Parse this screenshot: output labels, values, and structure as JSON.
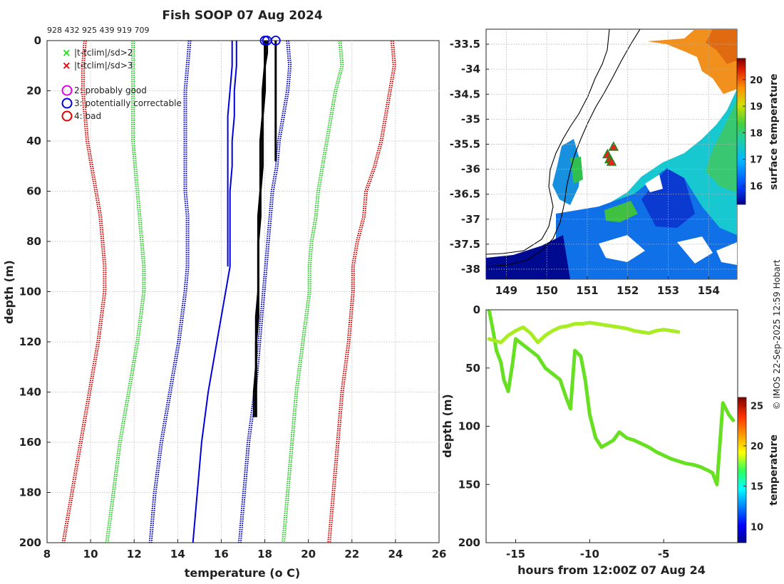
{
  "figure": {
    "title": "Fish SOOP 07 Aug 2024",
    "ids_text": "928 432 925 439 919 709",
    "credit": "© IMOS 22-Sep-2025 12:59 Hobart"
  },
  "legend": {
    "items": [
      {
        "symbol": "x",
        "color": "#22dd22",
        "label": "|t-tclim|/sd>2"
      },
      {
        "symbol": "x",
        "color": "#dd0000",
        "label": "|t-tclim|/sd>3"
      },
      {
        "symbol": "o",
        "color": "#e000e0",
        "label": "2: probably good"
      },
      {
        "symbol": "o",
        "color": "#0000dd",
        "label": "3: potentially correctable"
      },
      {
        "symbol": "o",
        "color": "#dd0000",
        "label": "4: bad"
      }
    ]
  },
  "chart_data": [
    {
      "id": "profile",
      "type": "line",
      "xlabel": "temperature",
      "xlabel_unit": "(o C)",
      "ylabel": "depth (m)",
      "xlim": [
        8,
        26
      ],
      "ylim": [
        0,
        200
      ],
      "y_reversed": true,
      "xticks": [
        8,
        10,
        12,
        14,
        16,
        18,
        20,
        22,
        24,
        26
      ],
      "yticks": [
        0,
        20,
        40,
        60,
        80,
        100,
        120,
        140,
        160,
        180,
        200
      ],
      "grid": true,
      "series": [
        {
          "name": "clim +3sd",
          "color": "#dd0000",
          "style": "dotted",
          "band": 2,
          "depth": [
            0,
            10,
            20,
            30,
            40,
            50,
            60,
            70,
            80,
            90,
            100,
            120,
            140,
            160,
            180,
            200
          ],
          "temp": [
            23.8,
            23.9,
            23.7,
            23.5,
            23.3,
            23.0,
            22.6,
            22.5,
            22.2,
            22.0,
            22.0,
            21.8,
            21.5,
            21.3,
            21.1,
            20.9
          ]
        },
        {
          "name": "clim +2sd",
          "color": "#22cc22",
          "style": "dotted",
          "band": 2,
          "depth": [
            0,
            10,
            20,
            30,
            40,
            50,
            60,
            70,
            80,
            90,
            100,
            120,
            140,
            160,
            180,
            200
          ],
          "temp": [
            21.4,
            21.5,
            21.2,
            21.0,
            20.8,
            20.6,
            20.4,
            20.3,
            20.1,
            20.0,
            20.0,
            19.7,
            19.4,
            19.2,
            19.0,
            18.8
          ]
        },
        {
          "name": "clim +1sd",
          "color": "#0000cc",
          "style": "dotted",
          "band": 2,
          "depth": [
            0,
            10,
            20,
            30,
            40,
            50,
            60,
            70,
            80,
            90,
            100,
            120,
            140,
            160,
            180,
            200
          ],
          "temp": [
            19.0,
            19.1,
            19.0,
            18.8,
            18.6,
            18.5,
            18.3,
            18.2,
            18.1,
            18.0,
            17.9,
            17.7,
            17.5,
            17.2,
            17.0,
            16.8
          ]
        },
        {
          "name": "clim -1sd",
          "color": "#0000cc",
          "style": "dotted",
          "band": 2,
          "depth": [
            0,
            10,
            20,
            30,
            40,
            50,
            60,
            70,
            80,
            90,
            100,
            120,
            140,
            160,
            180,
            200
          ],
          "temp": [
            14.5,
            14.4,
            14.3,
            14.3,
            14.3,
            14.3,
            14.3,
            14.4,
            14.4,
            14.4,
            14.3,
            14.0,
            13.6,
            13.2,
            12.9,
            12.7
          ]
        },
        {
          "name": "clim -2sd",
          "color": "#22cc22",
          "style": "dotted",
          "band": 2,
          "depth": [
            0,
            10,
            20,
            30,
            40,
            50,
            60,
            70,
            80,
            90,
            100,
            120,
            140,
            160,
            180,
            200
          ],
          "temp": [
            11.9,
            11.9,
            11.9,
            11.9,
            11.9,
            12.0,
            12.1,
            12.2,
            12.3,
            12.4,
            12.4,
            12.1,
            11.7,
            11.3,
            11.0,
            10.7
          ]
        },
        {
          "name": "clim -3sd",
          "color": "#dd0000",
          "style": "dotted",
          "band": 2,
          "depth": [
            0,
            10,
            20,
            30,
            40,
            50,
            60,
            70,
            80,
            90,
            100,
            120,
            140,
            160,
            180,
            200
          ],
          "temp": [
            9.7,
            9.6,
            9.6,
            9.7,
            9.8,
            10.0,
            10.2,
            10.4,
            10.5,
            10.6,
            10.6,
            10.3,
            9.9,
            9.5,
            9.1,
            8.7
          ]
        },
        {
          "name": "clim mean",
          "color": "#0000dd",
          "style": "solid",
          "band": 2,
          "depth": [
            0,
            10,
            20,
            30,
            40,
            50,
            60,
            70,
            80,
            90,
            100,
            120,
            140,
            160,
            180,
            200
          ],
          "temp": [
            16.7,
            16.7,
            16.6,
            16.6,
            16.5,
            16.5,
            16.4,
            16.4,
            16.4,
            16.4,
            16.2,
            15.8,
            15.4,
            15.1,
            14.9,
            14.7
          ]
        },
        {
          "name": "clim mean short",
          "color": "#0000dd",
          "style": "solid",
          "band": 2,
          "depth": [
            0,
            10,
            20,
            30,
            40,
            50,
            60,
            70,
            80,
            90
          ],
          "temp": [
            16.5,
            16.5,
            16.4,
            16.3,
            16.3,
            16.3,
            16.3,
            16.3,
            16.3,
            16.3
          ]
        },
        {
          "name": "profiles",
          "color": "#000000",
          "style": "solid",
          "band": 3,
          "depth": [
            0,
            5,
            10,
            20,
            30,
            40,
            50,
            60,
            70,
            80,
            90,
            100,
            110,
            120,
            130,
            140,
            150
          ],
          "temp": [
            18.0,
            18.0,
            18.0,
            17.9,
            17.9,
            17.8,
            17.8,
            17.8,
            17.7,
            17.7,
            17.7,
            17.7,
            17.7,
            17.6,
            17.6,
            17.6,
            17.6
          ]
        },
        {
          "name": "profiles 2",
          "color": "#000000",
          "style": "solid",
          "band": 3,
          "depth": [
            0,
            5,
            10,
            20,
            30,
            40,
            50,
            60,
            70,
            80,
            90,
            100,
            110,
            120,
            130,
            140,
            150
          ],
          "temp": [
            18.1,
            18.1,
            18.0,
            18.0,
            17.9,
            17.9,
            17.9,
            17.8,
            17.8,
            17.7,
            17.7,
            17.7,
            17.6,
            17.6,
            17.6,
            17.5,
            17.5
          ]
        },
        {
          "name": "profile short",
          "color": "#000000",
          "style": "solid",
          "band": 3,
          "depth": [
            0,
            10,
            20,
            30,
            40,
            48
          ],
          "temp": [
            18.5,
            18.5,
            18.5,
            18.5,
            18.5,
            18.5
          ]
        }
      ],
      "flags": [
        {
          "temp": 18.0,
          "depth": 0,
          "color": "#0000dd"
        },
        {
          "temp": 18.1,
          "depth": 0,
          "color": "#0000dd"
        },
        {
          "temp": 18.5,
          "depth": 0,
          "color": "#0000dd"
        }
      ]
    },
    {
      "id": "map",
      "type": "heatmap",
      "xlim": [
        148.5,
        154.7
      ],
      "ylim": [
        -38.2,
        -33.2
      ],
      "xticks": [
        149,
        150,
        151,
        152,
        153,
        154
      ],
      "yticks": [
        -33.5,
        -34,
        -34.5,
        -35,
        -35.5,
        -36,
        -36.5,
        -37,
        -37.5,
        -38
      ],
      "xtick_labels": [
        "149",
        "150",
        "151",
        "152",
        "153",
        "154"
      ],
      "ytick_labels": [
        "-33.5",
        "-34",
        "-34.5",
        "-35",
        "-35.5",
        "-36",
        "-36.5",
        "-37",
        "-37.5",
        "-38"
      ],
      "colorbar": {
        "label": "surface temperature",
        "min": 15.3,
        "max": 20.8,
        "ticks": [
          16,
          17,
          18,
          19,
          20
        ]
      },
      "markers": [
        {
          "lon": 151.65,
          "lat": -35.55
        },
        {
          "lon": 151.5,
          "lat": -35.7
        },
        {
          "lon": 151.55,
          "lat": -35.8
        },
        {
          "lon": 151.6,
          "lat": -35.85
        }
      ]
    },
    {
      "id": "timeseries",
      "type": "line",
      "xlabel": "hours from 12:00Z 07 Aug 24",
      "ylabel": "depth (m)",
      "xlim": [
        -17,
        0
      ],
      "ylim": [
        0,
        200
      ],
      "y_reversed": true,
      "xticks": [
        -15,
        -10,
        -5
      ],
      "yticks": [
        0,
        50,
        100,
        150,
        200
      ],
      "colorbar": {
        "label": "temperature",
        "min": 8,
        "max": 26,
        "ticks": [
          10,
          15,
          20,
          25
        ]
      },
      "series": [
        {
          "name": "deep track",
          "color": "#66e020",
          "x": [
            -16.8,
            -16.5,
            -16.3,
            -16.0,
            -15.8,
            -15.5,
            -15.2,
            -15.0,
            -14.5,
            -14.0,
            -13.5,
            -13.0,
            -12.5,
            -12.0,
            -11.6,
            -11.3,
            -11.0,
            -10.6,
            -10.3,
            -10.0,
            -9.6,
            -9.2,
            -8.8,
            -8.4,
            -8.0,
            -7.5,
            -7.0,
            -6.5,
            -6.0,
            -5.5,
            -5.0,
            -4.5,
            -4.0,
            -3.5,
            -3.0,
            -2.5,
            -2.0,
            -1.7,
            -1.4,
            -1.0,
            -0.6,
            -0.3
          ],
          "y": [
            0,
            20,
            35,
            45,
            60,
            70,
            45,
            25,
            30,
            35,
            40,
            50,
            55,
            60,
            75,
            85,
            35,
            40,
            60,
            90,
            110,
            118,
            115,
            112,
            105,
            110,
            112,
            115,
            118,
            122,
            125,
            128,
            130,
            132,
            133,
            135,
            138,
            140,
            150,
            80,
            90,
            95
          ]
        },
        {
          "name": "shallow track",
          "color": "#a8ec22",
          "x": [
            -16.8,
            -16.0,
            -15.5,
            -15.0,
            -14.5,
            -14.0,
            -13.5,
            -13.0,
            -12.5,
            -12.0,
            -11.5,
            -11.0,
            -10.5,
            -10.0,
            -9.5,
            -9.0,
            -8.5,
            -8.0,
            -7.5,
            -7.0,
            -6.5,
            -6.0,
            -5.5,
            -5.0,
            -4.5,
            -4.0
          ],
          "y": [
            25,
            28,
            22,
            18,
            15,
            20,
            28,
            22,
            18,
            15,
            14,
            12,
            12,
            11,
            12,
            13,
            14,
            15,
            16,
            18,
            19,
            20,
            18,
            17,
            18,
            19
          ]
        }
      ]
    }
  ]
}
